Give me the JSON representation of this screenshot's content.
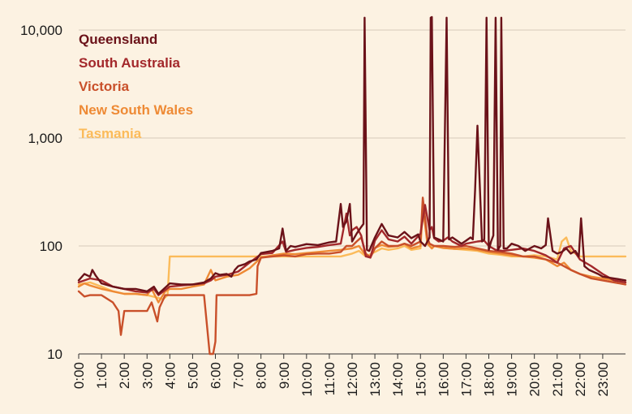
{
  "chart_data": {
    "type": "line",
    "title": "",
    "xlabel": "",
    "ylabel": "",
    "y_scale": "log",
    "ylim": [
      10,
      14000
    ],
    "xlim": [
      0,
      24
    ],
    "grid": "horizontal",
    "legend_position": "top-left",
    "y_ticks": [
      {
        "value": 10,
        "label": "10"
      },
      {
        "value": 100,
        "label": "100"
      },
      {
        "value": 1000,
        "label": "1,000"
      },
      {
        "value": 10000,
        "label": "10,000"
      }
    ],
    "x_ticks": [
      "0:00",
      "1:00",
      "2:00",
      "3:00",
      "4:00",
      "5:00",
      "6:00",
      "7:00",
      "8:00",
      "9:00",
      "10:00",
      "11:00",
      "12:00",
      "13:00",
      "14:00",
      "15:00",
      "16:00",
      "17:00",
      "18:00",
      "19:00",
      "20:00",
      "21:00",
      "22:00",
      "23:00"
    ],
    "series": [
      {
        "name": "Queensland",
        "color": "#6b1219",
        "x": [
          0,
          0.25,
          0.5,
          0.6,
          0.75,
          1,
          1.5,
          2,
          2.5,
          3,
          3.3,
          3.5,
          4,
          4.5,
          5,
          5.5,
          5.8,
          6,
          6.2,
          6.5,
          6.7,
          6.85,
          7,
          7.3,
          7.5,
          7.8,
          8,
          8.5,
          8.8,
          8.95,
          9.1,
          9.3,
          9.5,
          10,
          10.5,
          11,
          11.3,
          11.5,
          11.6,
          11.75,
          11.9,
          12,
          12.2,
          12.4,
          12.5,
          12.55,
          12.65,
          12.75,
          13,
          13.3,
          13.6,
          14,
          14.3,
          14.6,
          14.9,
          15,
          15.2,
          15.4,
          15.45,
          15.5,
          15.6,
          15.8,
          16,
          16.15,
          16.25,
          16.4,
          16.8,
          17,
          17.2,
          17.3,
          17.4,
          17.5,
          17.7,
          17.8,
          17.9,
          18,
          18.1,
          18.2,
          18.3,
          18.4,
          18.5,
          18.55,
          18.65,
          18.8,
          19,
          19.3,
          19.6,
          20,
          20.3,
          20.5,
          20.6,
          20.8,
          21,
          21.2,
          21.4,
          21.6,
          21.8,
          21.95,
          22.05,
          22.2,
          22.4,
          22.8,
          23,
          23.5,
          24
        ],
        "y": [
          48,
          55,
          52,
          60,
          53,
          45,
          42,
          40,
          40,
          38,
          42,
          36,
          45,
          44,
          44,
          46,
          50,
          56,
          54,
          55,
          52,
          60,
          65,
          68,
          72,
          75,
          86,
          90,
          95,
          145,
          90,
          100,
          98,
          104,
          102,
          108,
          110,
          245,
          150,
          170,
          245,
          110,
          130,
          150,
          160,
          13000,
          92,
          90,
          120,
          160,
          125,
          120,
          135,
          118,
          128,
          110,
          100,
          120,
          13000,
          13200,
          120,
          115,
          110,
          13000,
          115,
          120,
          105,
          112,
          120,
          115,
          330,
          1300,
          110,
          115,
          13000,
          92,
          110,
          125,
          13000,
          92,
          100,
          13000,
          95,
          95,
          105,
          100,
          90,
          100,
          95,
          102,
          180,
          90,
          85,
          88,
          95,
          85,
          90,
          80,
          180,
          65,
          60,
          55,
          52,
          50,
          48
        ]
      },
      {
        "name": "South Australia",
        "color": "#a3282b",
        "x": [
          0,
          0.5,
          1,
          1.5,
          2,
          2.5,
          3,
          3.3,
          3.5,
          4,
          4.5,
          5,
          5.5,
          5.8,
          6,
          6.5,
          7,
          7.5,
          8,
          8.5,
          8.95,
          9.1,
          9.5,
          10,
          10.5,
          11,
          11.5,
          11.75,
          11.9,
          12,
          12.2,
          12.4,
          12.6,
          12.8,
          13,
          13.3,
          13.6,
          14,
          14.3,
          14.6,
          15,
          15.2,
          15.4,
          15.5,
          15.6,
          15.8,
          16,
          16.2,
          16.4,
          16.8,
          17,
          17.5,
          17.8,
          18,
          18.3,
          18.6,
          19,
          19.5,
          20,
          20.5,
          20.8,
          21,
          21.3,
          21.6,
          22,
          22.5,
          23,
          23.5,
          24
        ],
        "y": [
          46,
          50,
          48,
          42,
          40,
          38,
          37,
          40,
          35,
          42,
          43,
          44,
          45,
          48,
          52,
          54,
          58,
          70,
          84,
          86,
          110,
          88,
          92,
          96,
          98,
          102,
          105,
          200,
          125,
          140,
          150,
          125,
          80,
          78,
          112,
          140,
          115,
          110,
          122,
          105,
          130,
          240,
          140,
          150,
          118,
          110,
          112,
          120,
          110,
          100,
          105,
          110,
          112,
          100,
          92,
          90,
          92,
          95,
          90,
          82,
          75,
          70,
          95,
          100,
          75,
          65,
          55,
          48,
          46
        ]
      },
      {
        "name": "Victoria",
        "color": "#c9502a",
        "x": [
          0,
          0.25,
          0.5,
          1,
          1.5,
          1.75,
          1.85,
          2,
          2.5,
          3,
          3.2,
          3.45,
          3.55,
          3.8,
          4,
          4.5,
          5,
          5.5,
          5.75,
          5.9,
          6,
          6.05,
          6.3,
          6.5,
          7,
          7.5,
          7.8,
          7.85,
          8,
          8.5,
          9,
          9.5,
          10,
          10.5,
          11,
          11.5,
          11.75,
          12,
          12.2,
          12.4,
          12.6,
          12.8,
          13,
          13.3,
          13.6,
          14,
          14.3,
          14.6,
          15,
          15.1,
          15.3,
          15.4,
          15.6,
          16,
          16.5,
          17,
          17.5,
          18,
          18.5,
          19,
          19.5,
          20,
          20.5,
          21,
          21.3,
          21.6,
          22,
          22.5,
          23,
          23.5,
          24
        ],
        "y": [
          38,
          34,
          35,
          35,
          30,
          25,
          15,
          25,
          25,
          25,
          30,
          20,
          27,
          35,
          35,
          35,
          35,
          35,
          10,
          10,
          13,
          35,
          35,
          35,
          35,
          35,
          36,
          65,
          78,
          80,
          82,
          80,
          84,
          85,
          85,
          88,
          100,
          100,
          110,
          120,
          85,
          78,
          95,
          110,
          100,
          100,
          105,
          100,
          110,
          280,
          120,
          105,
          100,
          100,
          98,
          100,
          95,
          90,
          88,
          85,
          80,
          80,
          75,
          70,
          65,
          60,
          55,
          50,
          48,
          46,
          44
        ]
      },
      {
        "name": "New South Wales",
        "color": "#ee8a35",
        "x": [
          0,
          0.25,
          0.5,
          1,
          1.5,
          2,
          2.5,
          3,
          3.2,
          3.5,
          3.8,
          4,
          4.5,
          5,
          5.5,
          5.8,
          6,
          6.5,
          7,
          7.5,
          8,
          8.5,
          9,
          9.5,
          10,
          10.5,
          11,
          11.5,
          12,
          12.3,
          12.6,
          12.8,
          13,
          13.3,
          13.6,
          14,
          14.3,
          14.6,
          15,
          15.1,
          15.3,
          15.5,
          15.6,
          16,
          16.5,
          17,
          17.5,
          18,
          18.5,
          19,
          19.5,
          20,
          20.5,
          21,
          21.3,
          21.6,
          22,
          22.5,
          23,
          23.5,
          24
        ],
        "y": [
          42,
          45,
          43,
          40,
          38,
          36,
          36,
          35,
          40,
          30,
          38,
          40,
          40,
          42,
          44,
          60,
          48,
          52,
          54,
          62,
          78,
          82,
          85,
          84,
          86,
          88,
          90,
          92,
          95,
          100,
          82,
          80,
          96,
          102,
          98,
          100,
          105,
          95,
          100,
          250,
          105,
          95,
          100,
          96,
          94,
          95,
          92,
          88,
          85,
          82,
          80,
          78,
          75,
          65,
          70,
          60,
          55,
          52,
          50,
          48,
          46
        ]
      },
      {
        "name": "Tasmania",
        "color": "#fbbb5a",
        "x": [
          0,
          0.5,
          1,
          1.5,
          2,
          2.5,
          3,
          3.5,
          3.7,
          3.9,
          4,
          4.5,
          5,
          5.5,
          6,
          6.5,
          7,
          7.5,
          8,
          8.5,
          9,
          9.5,
          10,
          10.5,
          11,
          11.5,
          12,
          12.3,
          12.6,
          13,
          13.3,
          13.6,
          14,
          14.3,
          14.6,
          15,
          15.1,
          15.3,
          15.5,
          15.6,
          16,
          16.5,
          17,
          17.5,
          18,
          18.5,
          19,
          19.5,
          20,
          20.5,
          21,
          21.2,
          21.4,
          21.6,
          21.8,
          22,
          22.5,
          23,
          23.5,
          24
        ],
        "y": [
          44,
          46,
          42,
          38,
          36,
          36,
          35,
          33,
          32,
          35,
          80,
          80,
          80,
          80,
          80,
          80,
          80,
          80,
          80,
          80,
          80,
          80,
          80,
          80,
          80,
          80,
          85,
          90,
          80,
          88,
          95,
          92,
          95,
          100,
          92,
          95,
          220,
          110,
          95,
          100,
          96,
          94,
          92,
          90,
          85,
          83,
          80,
          80,
          82,
          80,
          75,
          110,
          120,
          90,
          85,
          80,
          80,
          80,
          80,
          80
        ]
      }
    ]
  }
}
